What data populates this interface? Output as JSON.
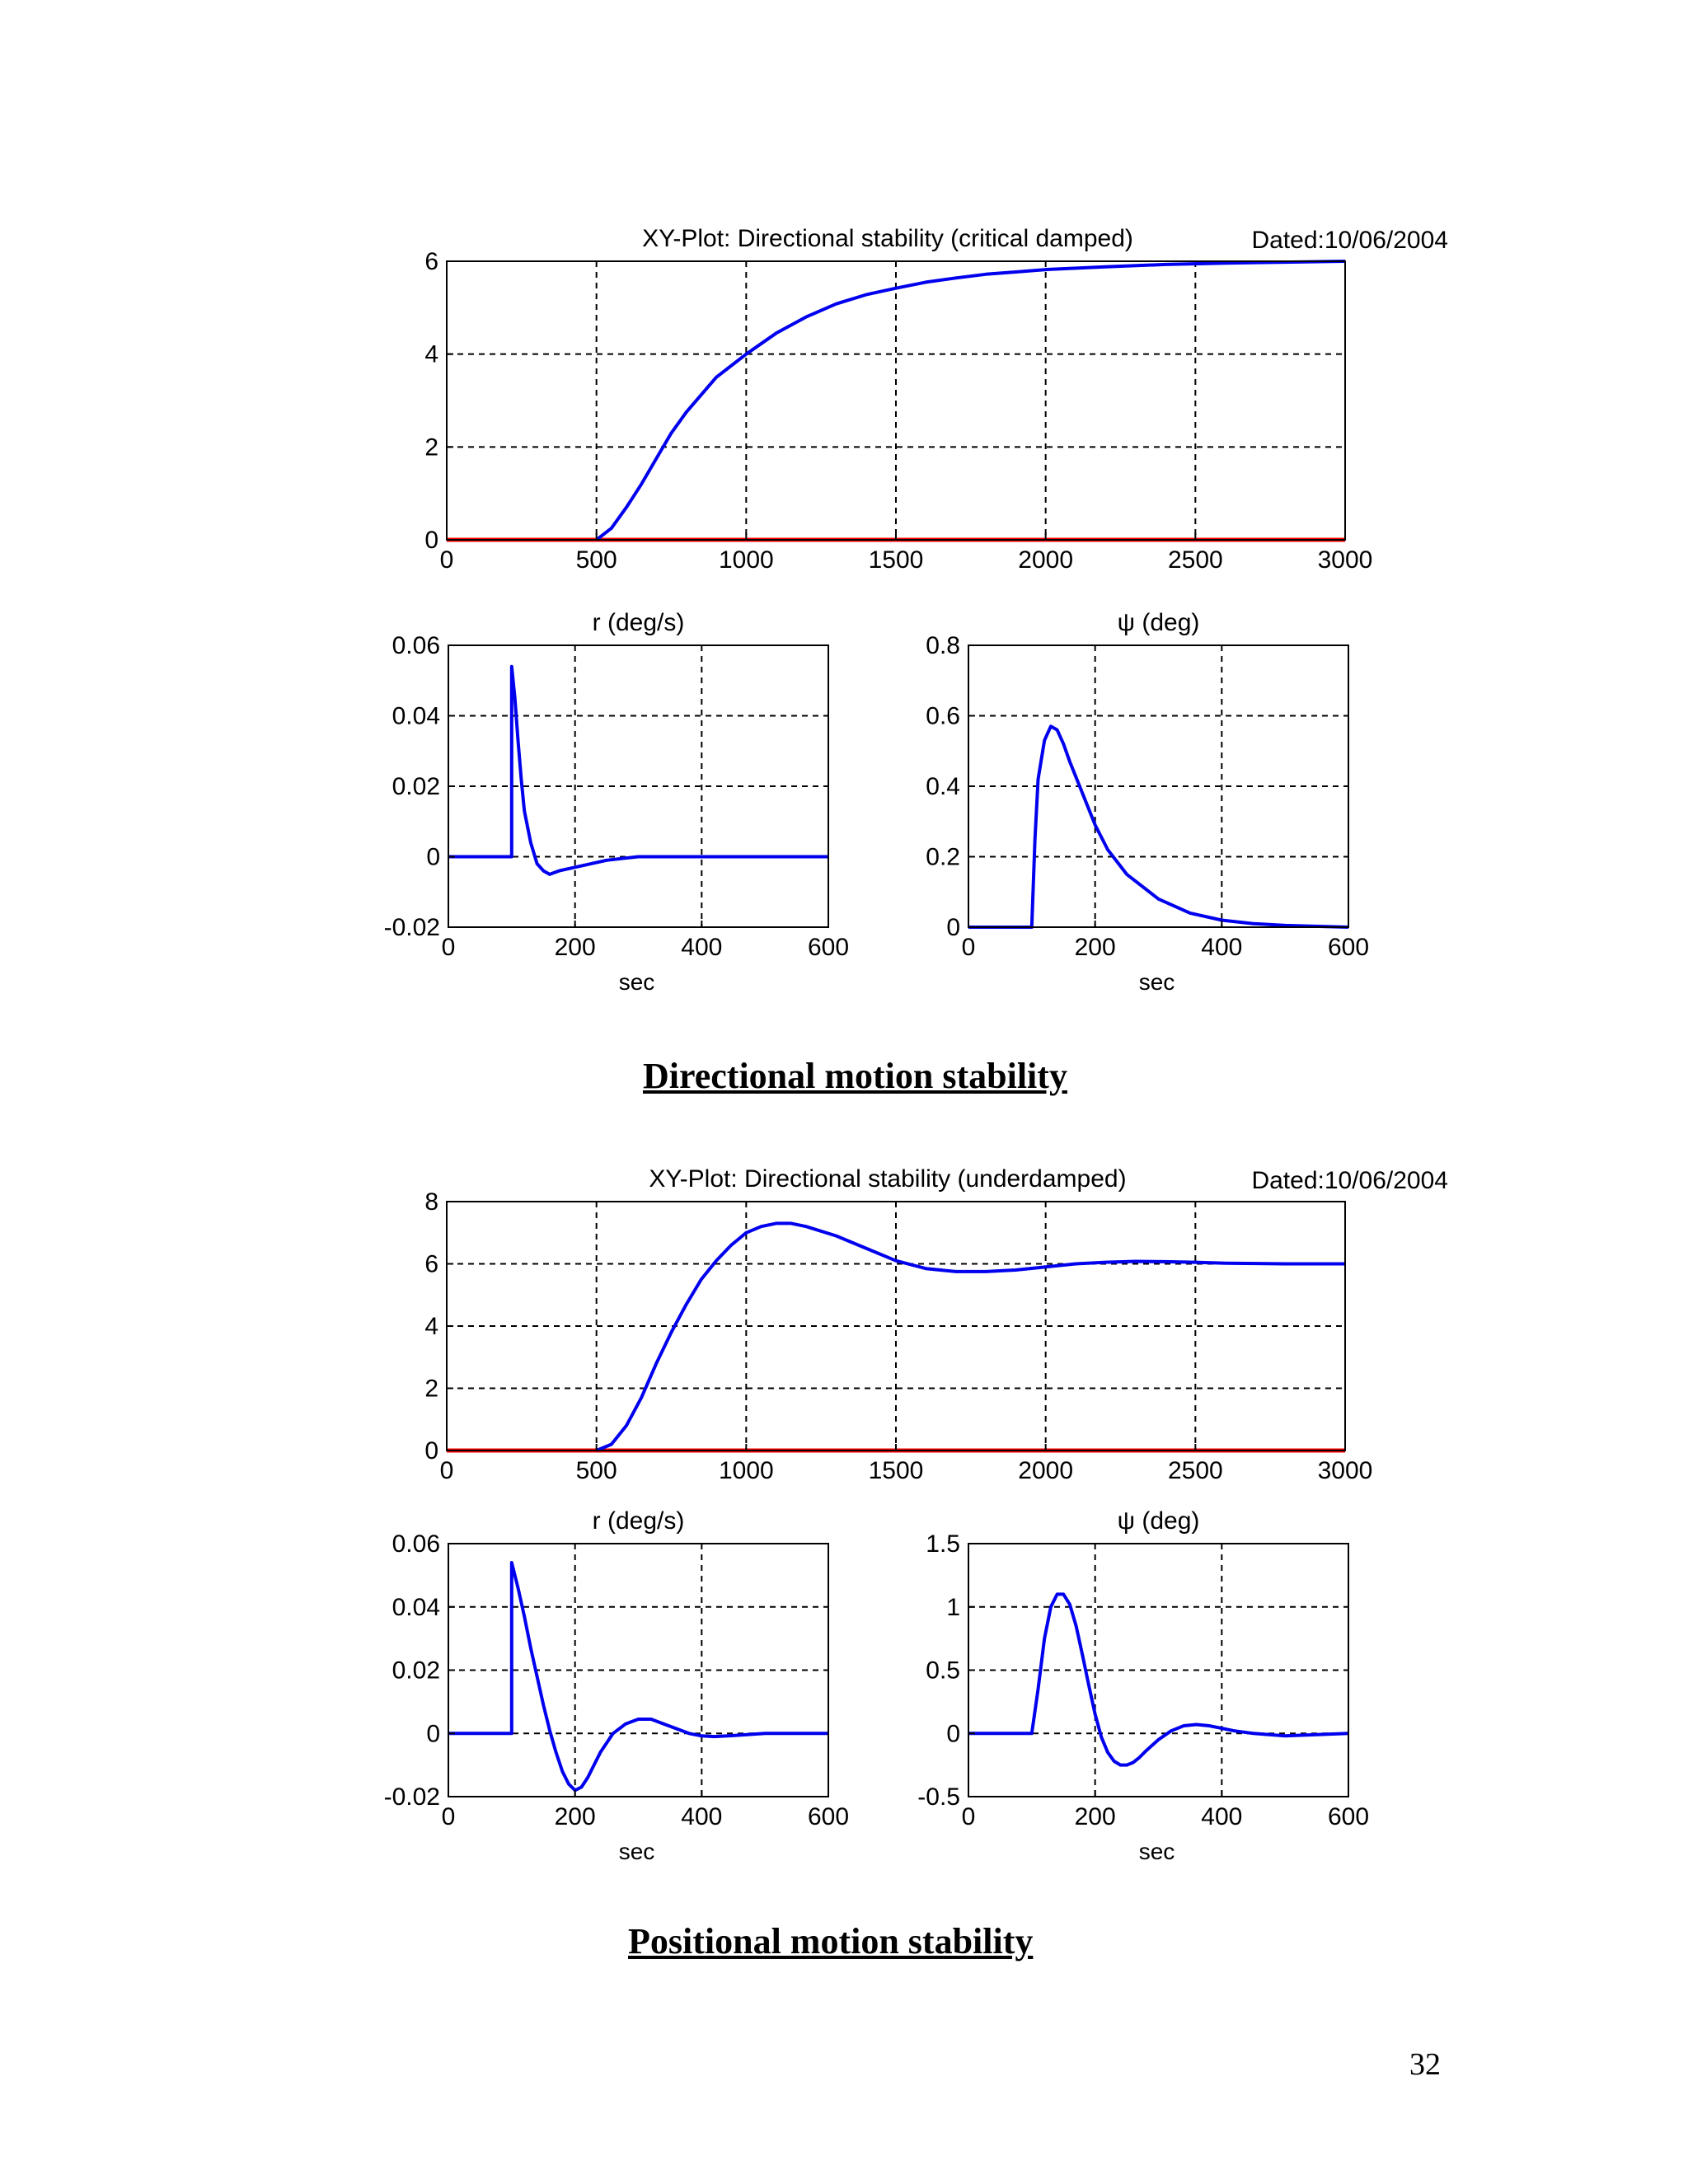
{
  "captions": {
    "directional": "Directional motion stability",
    "positional": "Positional motion stability"
  },
  "page_number": "32",
  "colors": {
    "series": "#0000ee",
    "reference": "#ff0000",
    "grid": "#000000"
  },
  "chart_data": [
    {
      "id": "fig1-xy",
      "type": "line",
      "title": "XY-Plot: Directional stability (critical damped)",
      "dated": "Dated:10/06/2004",
      "xlabel": "",
      "xlim": [
        0,
        3000
      ],
      "ylim": [
        0,
        6
      ],
      "xticks": [
        0,
        500,
        1000,
        1500,
        2000,
        2500,
        3000
      ],
      "yticks": [
        0,
        2,
        4,
        6
      ],
      "xtick_labels": [
        "0",
        "500",
        "1000",
        "1500",
        "2000",
        "2500",
        "3000"
      ],
      "ytick_labels": [
        "0",
        "2",
        "4",
        "6"
      ],
      "grid": true,
      "series": [
        {
          "color": "#ff0000",
          "x": [
            0,
            3000
          ],
          "y": [
            0,
            0
          ]
        },
        {
          "color": "#0000ee",
          "x": [
            500,
            550,
            600,
            650,
            700,
            750,
            800,
            900,
            1000,
            1100,
            1200,
            1300,
            1400,
            1500,
            1600,
            1700,
            1800,
            1900,
            2000,
            2200,
            2400,
            2600,
            2800,
            3000
          ],
          "y": [
            0,
            0.25,
            0.7,
            1.2,
            1.75,
            2.3,
            2.75,
            3.5,
            4.0,
            4.45,
            4.8,
            5.08,
            5.28,
            5.42,
            5.55,
            5.64,
            5.72,
            5.77,
            5.82,
            5.88,
            5.93,
            5.96,
            5.98,
            6.0
          ]
        }
      ]
    },
    {
      "id": "fig1-r",
      "type": "line",
      "title": "r (deg/s)",
      "xlabel": "sec",
      "xlim": [
        0,
        600
      ],
      "ylim": [
        -0.02,
        0.06
      ],
      "xticks": [
        0,
        200,
        400,
        600
      ],
      "yticks": [
        -0.02,
        0,
        0.02,
        0.04,
        0.06
      ],
      "xtick_labels": [
        "0",
        "200",
        "400",
        "600"
      ],
      "ytick_labels": [
        "-0.02",
        "0",
        "0.02",
        "0.04",
        "0.06"
      ],
      "grid": true,
      "series": [
        {
          "color": "#0000ee",
          "x": [
            0,
            100,
            100,
            105,
            110,
            115,
            120,
            130,
            140,
            150,
            160,
            175,
            200,
            250,
            300,
            400,
            600
          ],
          "y": [
            0,
            0,
            0.054,
            0.045,
            0.033,
            0.022,
            0.013,
            0.004,
            -0.002,
            -0.004,
            -0.005,
            -0.004,
            -0.003,
            -0.001,
            0,
            0,
            0
          ]
        }
      ]
    },
    {
      "id": "fig1-psi",
      "type": "line",
      "title": "ψ (deg)",
      "xlabel": "sec",
      "xlim": [
        0,
        600
      ],
      "ylim": [
        0,
        0.8
      ],
      "xticks": [
        0,
        200,
        400,
        600
      ],
      "yticks": [
        0,
        0.2,
        0.4,
        0.6,
        0.8
      ],
      "xtick_labels": [
        "0",
        "200",
        "400",
        "600"
      ],
      "ytick_labels": [
        "0",
        "0.2",
        "0.4",
        "0.6",
        "0.8"
      ],
      "grid": true,
      "series": [
        {
          "color": "#0000ee",
          "x": [
            0,
            100,
            105,
            110,
            120,
            130,
            140,
            150,
            160,
            180,
            200,
            220,
            250,
            300,
            350,
            400,
            450,
            500,
            600
          ],
          "y": [
            0,
            0,
            0.25,
            0.42,
            0.53,
            0.57,
            0.56,
            0.52,
            0.47,
            0.38,
            0.29,
            0.22,
            0.15,
            0.08,
            0.04,
            0.02,
            0.01,
            0.005,
            0
          ]
        }
      ]
    },
    {
      "id": "fig2-xy",
      "type": "line",
      "title": "XY-Plot: Directional stability (underdamped)",
      "dated": "Dated:10/06/2004",
      "xlabel": "",
      "xlim": [
        0,
        3000
      ],
      "ylim": [
        0,
        8
      ],
      "xticks": [
        0,
        500,
        1000,
        1500,
        2000,
        2500,
        3000
      ],
      "yticks": [
        0,
        2,
        4,
        6,
        8
      ],
      "xtick_labels": [
        "0",
        "500",
        "1000",
        "1500",
        "2000",
        "2500",
        "3000"
      ],
      "ytick_labels": [
        "0",
        "2",
        "4",
        "6",
        "8"
      ],
      "grid": true,
      "series": [
        {
          "color": "#ff0000",
          "x": [
            0,
            3000
          ],
          "y": [
            0,
            0
          ]
        },
        {
          "color": "#0000ee",
          "x": [
            500,
            550,
            600,
            650,
            700,
            750,
            800,
            850,
            900,
            950,
            1000,
            1050,
            1100,
            1150,
            1200,
            1300,
            1400,
            1500,
            1600,
            1700,
            1800,
            1900,
            2000,
            2100,
            2200,
            2300,
            2400,
            2500,
            2600,
            2800,
            3000
          ],
          "y": [
            0,
            0.2,
            0.8,
            1.7,
            2.8,
            3.8,
            4.7,
            5.5,
            6.1,
            6.6,
            7.0,
            7.2,
            7.3,
            7.3,
            7.2,
            6.9,
            6.5,
            6.1,
            5.85,
            5.75,
            5.75,
            5.8,
            5.9,
            6.0,
            6.05,
            6.08,
            6.07,
            6.05,
            6.02,
            6.0,
            6.0
          ]
        }
      ]
    },
    {
      "id": "fig2-r",
      "type": "line",
      "title": "r (deg/s)",
      "xlabel": "sec",
      "xlim": [
        0,
        600
      ],
      "ylim": [
        -0.02,
        0.06
      ],
      "xticks": [
        0,
        200,
        400,
        600
      ],
      "yticks": [
        -0.02,
        0,
        0.02,
        0.04,
        0.06
      ],
      "xtick_labels": [
        "0",
        "200",
        "400",
        "600"
      ],
      "ytick_labels": [
        "-0.02",
        "0",
        "0.02",
        "0.04",
        "0.06"
      ],
      "grid": true,
      "series": [
        {
          "color": "#0000ee",
          "x": [
            0,
            100,
            100,
            110,
            120,
            130,
            140,
            150,
            160,
            170,
            180,
            190,
            200,
            210,
            220,
            230,
            240,
            260,
            280,
            300,
            320,
            340,
            360,
            380,
            400,
            420,
            450,
            500,
            600
          ],
          "y": [
            0,
            0,
            0.054,
            0.046,
            0.037,
            0.027,
            0.018,
            0.009,
            0.001,
            -0.006,
            -0.012,
            -0.016,
            -0.018,
            -0.017,
            -0.014,
            -0.01,
            -0.006,
            0.0,
            0.003,
            0.0045,
            0.0045,
            0.003,
            0.0015,
            0.0,
            -0.0008,
            -0.001,
            -0.0007,
            0,
            0
          ]
        }
      ]
    },
    {
      "id": "fig2-psi",
      "type": "line",
      "title": "ψ (deg)",
      "xlabel": "sec",
      "xlim": [
        0,
        600
      ],
      "ylim": [
        -0.5,
        1.5
      ],
      "xticks": [
        0,
        200,
        400,
        600
      ],
      "yticks": [
        -0.5,
        0,
        0.5,
        1,
        1.5
      ],
      "xtick_labels": [
        "0",
        "200",
        "400",
        "600"
      ],
      "ytick_labels": [
        "-0.5",
        "0",
        "0.5",
        "1",
        "1.5"
      ],
      "grid": true,
      "series": [
        {
          "color": "#0000ee",
          "x": [
            0,
            100,
            110,
            120,
            130,
            140,
            150,
            160,
            170,
            180,
            190,
            200,
            210,
            220,
            230,
            240,
            250,
            260,
            270,
            280,
            300,
            320,
            340,
            360,
            380,
            400,
            420,
            450,
            500,
            550,
            600
          ],
          "y": [
            0,
            0,
            0.35,
            0.75,
            1.0,
            1.1,
            1.1,
            1.02,
            0.85,
            0.62,
            0.38,
            0.15,
            -0.03,
            -0.15,
            -0.22,
            -0.25,
            -0.25,
            -0.23,
            -0.19,
            -0.14,
            -0.05,
            0.02,
            0.06,
            0.07,
            0.06,
            0.04,
            0.02,
            0.0,
            -0.02,
            -0.01,
            0.0
          ]
        }
      ]
    }
  ]
}
